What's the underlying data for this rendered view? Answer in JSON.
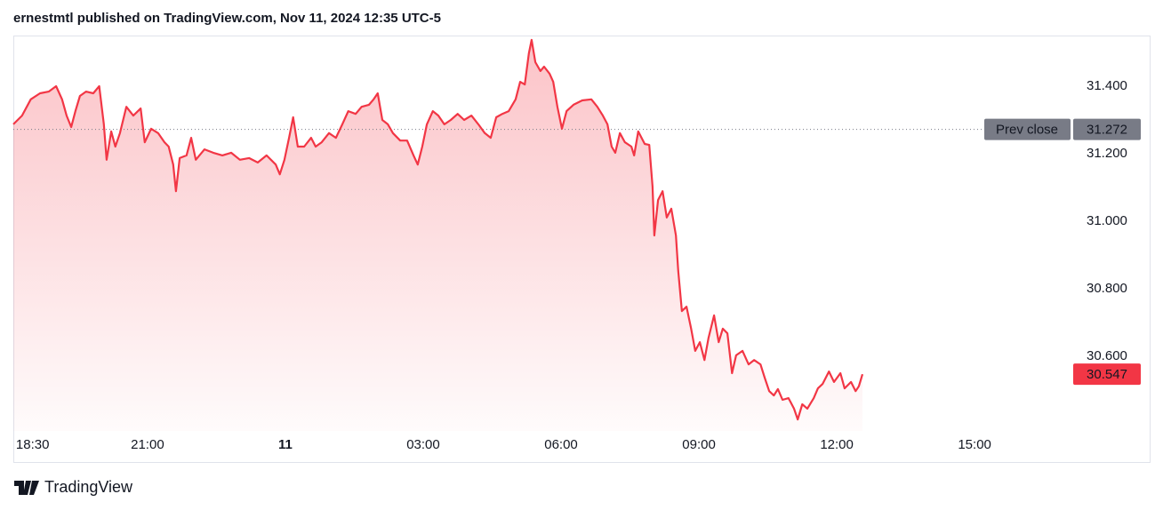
{
  "header": {
    "text": "ernestmtl published on TradingView.com, Nov 11, 2024 12:35 UTC-5"
  },
  "chart_data": {
    "type": "area",
    "color": "#f23645",
    "x": [
      -5.92,
      -5.73,
      -5.54,
      -5.34,
      -5.15,
      -4.99,
      -4.86,
      -4.76,
      -4.66,
      -4.57,
      -4.47,
      -4.34,
      -4.18,
      -4.05,
      -3.95,
      -3.89,
      -3.79,
      -3.7,
      -3.6,
      -3.46,
      -3.31,
      -3.15,
      -3.06,
      -2.92,
      -2.77,
      -2.63,
      -2.54,
      -2.44,
      -2.38,
      -2.3,
      -2.15,
      -2.05,
      -1.95,
      -1.76,
      -1.57,
      -1.37,
      -1.18,
      -0.99,
      -0.79,
      -0.6,
      -0.41,
      -0.21,
      -0.12,
      -0.02,
      0.08,
      0.17,
      0.27,
      0.41,
      0.56,
      0.66,
      0.79,
      0.95,
      1.1,
      1.24,
      1.37,
      1.53,
      1.66,
      1.82,
      1.92,
      2.01,
      2.11,
      2.23,
      2.34,
      2.5,
      2.65,
      2.79,
      2.88,
      2.98,
      3.08,
      3.21,
      3.33,
      3.46,
      3.6,
      3.75,
      3.89,
      4.05,
      4.2,
      4.34,
      4.47,
      4.59,
      4.72,
      4.86,
      5.01,
      5.11,
      5.21,
      5.3,
      5.36,
      5.44,
      5.55,
      5.63,
      5.75,
      5.83,
      5.92,
      6.02,
      6.12,
      6.27,
      6.46,
      6.66,
      6.79,
      6.91,
      7.01,
      7.1,
      7.18,
      7.28,
      7.39,
      7.53,
      7.59,
      7.68,
      7.82,
      7.92,
      7.99,
      8.03,
      8.11,
      8.21,
      8.3,
      8.4,
      8.5,
      8.55,
      8.63,
      8.73,
      8.83,
      8.92,
      9.02,
      9.12,
      9.21,
      9.33,
      9.43,
      9.52,
      9.62,
      9.72,
      9.81,
      9.95,
      10.08,
      10.2,
      10.34,
      10.43,
      10.53,
      10.63,
      10.72,
      10.82,
      10.95,
      11.07,
      11.15,
      11.25,
      11.36,
      11.5,
      11.59,
      11.69,
      11.83,
      11.94,
      12.08,
      12.17,
      12.31,
      12.41,
      12.48,
      12.56
    ],
    "values": [
      31.287,
      31.313,
      31.361,
      31.379,
      31.384,
      31.4,
      31.361,
      31.313,
      31.279,
      31.326,
      31.371,
      31.384,
      31.379,
      31.4,
      31.287,
      31.182,
      31.266,
      31.221,
      31.261,
      31.339,
      31.313,
      31.334,
      31.234,
      31.274,
      31.261,
      31.234,
      31.221,
      31.168,
      31.089,
      31.187,
      31.195,
      31.247,
      31.182,
      31.213,
      31.203,
      31.195,
      31.203,
      31.182,
      31.187,
      31.174,
      31.195,
      31.168,
      31.139,
      31.182,
      31.247,
      31.308,
      31.221,
      31.221,
      31.247,
      31.221,
      31.234,
      31.261,
      31.247,
      31.287,
      31.326,
      31.318,
      31.339,
      31.345,
      31.361,
      31.379,
      31.3,
      31.287,
      31.261,
      31.239,
      31.239,
      31.195,
      31.168,
      31.221,
      31.287,
      31.326,
      31.313,
      31.287,
      31.3,
      31.318,
      31.3,
      31.313,
      31.287,
      31.261,
      31.247,
      31.308,
      31.318,
      31.326,
      31.361,
      31.413,
      31.405,
      31.497,
      31.537,
      31.471,
      31.445,
      31.458,
      31.437,
      31.413,
      31.339,
      31.274,
      31.326,
      31.345,
      31.358,
      31.361,
      31.339,
      31.313,
      31.287,
      31.221,
      31.203,
      31.261,
      31.234,
      31.221,
      31.195,
      31.266,
      31.229,
      31.226,
      31.103,
      30.958,
      31.063,
      31.089,
      31.011,
      31.037,
      30.958,
      30.853,
      30.734,
      30.747,
      30.682,
      30.616,
      30.642,
      30.589,
      30.655,
      30.721,
      30.642,
      30.682,
      30.668,
      30.55,
      30.603,
      30.616,
      30.576,
      30.589,
      30.576,
      30.537,
      30.497,
      30.484,
      30.503,
      30.471,
      30.476,
      30.445,
      30.413,
      30.458,
      30.445,
      30.476,
      30.505,
      30.518,
      30.555,
      30.524,
      30.55,
      30.505,
      30.524,
      30.497,
      30.511,
      30.547
    ],
    "xlim": [
      -5.92,
      17.01
    ],
    "xticks": [
      {
        "value": -5.5,
        "label": "18:30"
      },
      {
        "value": -3,
        "label": "21:00"
      },
      {
        "value": 0,
        "label": "11"
      },
      {
        "value": 3,
        "label": "03:00"
      },
      {
        "value": 6,
        "label": "06:00"
      },
      {
        "value": 9,
        "label": "09:00"
      },
      {
        "value": 12,
        "label": "12:00"
      },
      {
        "value": 15,
        "label": "15:00"
      }
    ],
    "ylim": [
      30.379,
      31.55
    ],
    "yticks": [
      {
        "value": 30.6,
        "label": "30.600"
      },
      {
        "value": 30.8,
        "label": "30.800"
      },
      {
        "value": 31,
        "label": "31.000"
      },
      {
        "value": 31.2,
        "label": "31.200"
      },
      {
        "value": 31.4,
        "label": "31.400"
      }
    ],
    "prev_close": {
      "label": "Prev close",
      "value": 31.272
    }
  },
  "footer": {
    "brand": "TradingView"
  }
}
